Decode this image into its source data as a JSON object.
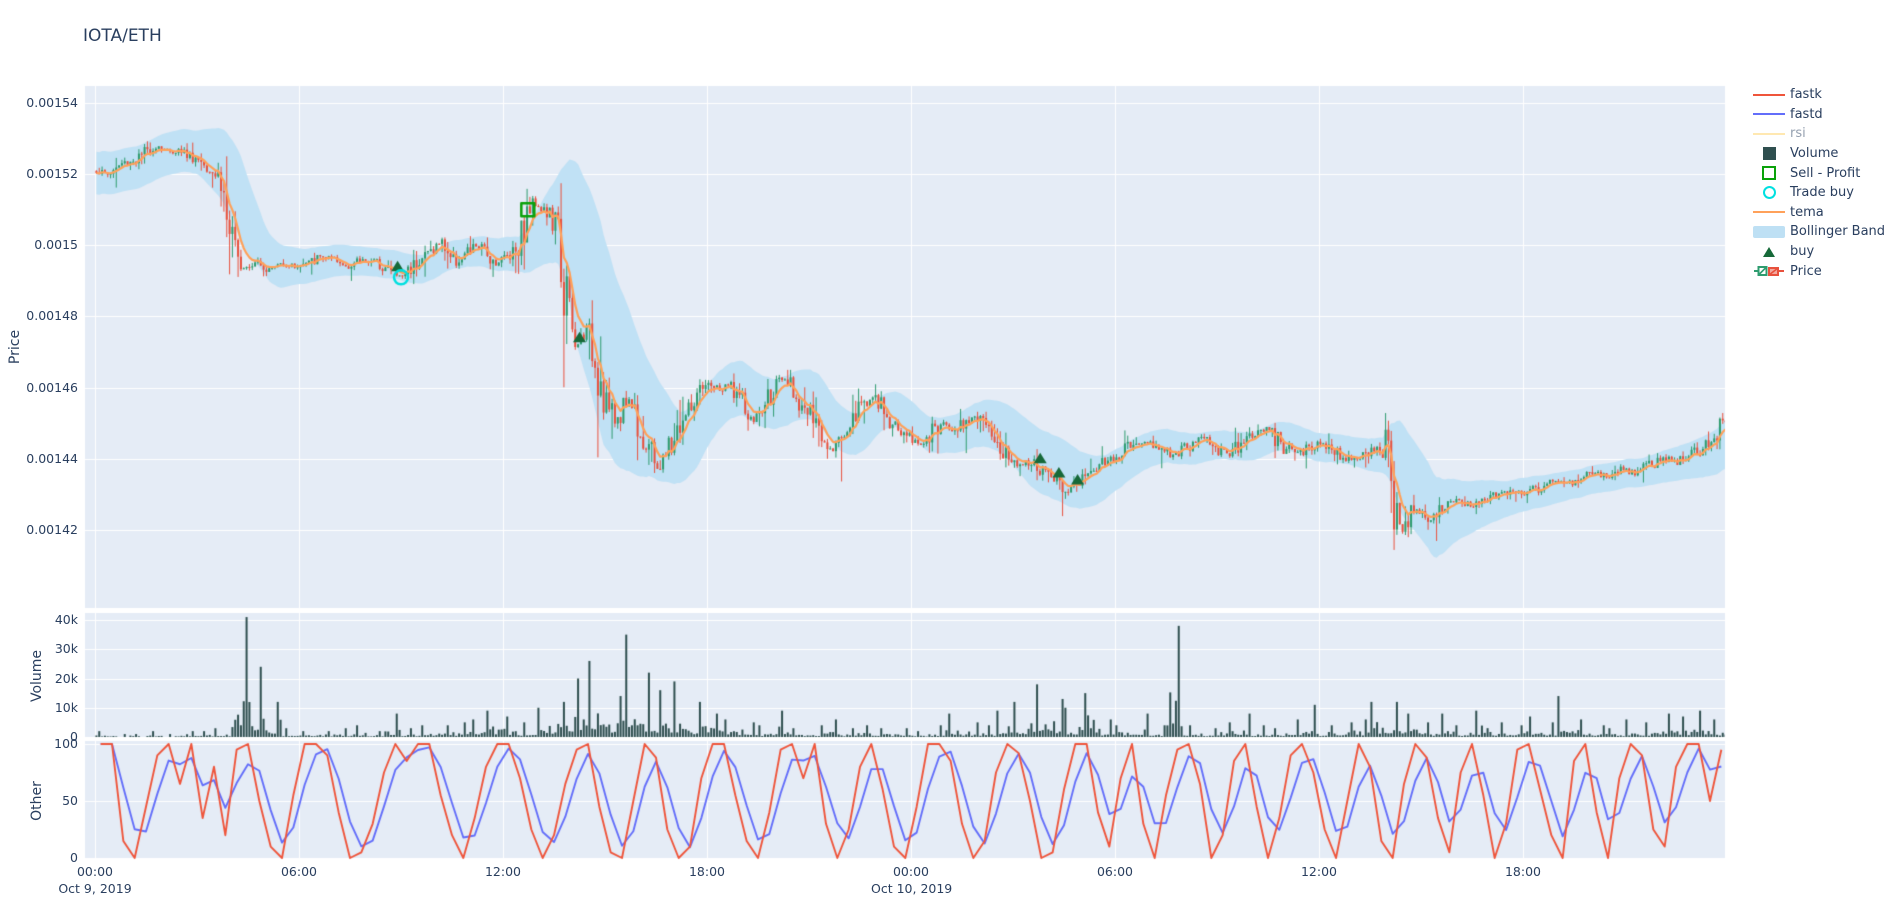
{
  "title": "IOTA/ETH",
  "axes": {
    "price": {
      "title": "Price"
    },
    "volume": {
      "title": "Volume"
    },
    "other": {
      "title": "Other"
    }
  },
  "y_axis_price": {
    "ticks": [
      "0.00154",
      "0.00152",
      "0.0015",
      "0.00148",
      "0.00146",
      "0.00144",
      "0.00142"
    ],
    "tick_values_micro": [
      1540,
      1520,
      1500,
      1480,
      1460,
      1440,
      1420
    ]
  },
  "y_axis_volume": {
    "ticks": [
      "40k",
      "30k",
      "20k",
      "10k",
      "0"
    ],
    "tick_values": [
      40,
      30,
      20,
      10,
      0
    ]
  },
  "y_axis_other": {
    "ticks": [
      "100",
      "50",
      "0"
    ],
    "tick_values": [
      100,
      50,
      0
    ]
  },
  "x_axis": {
    "tick_labels": [
      "00:00",
      "06:00",
      "12:00",
      "18:00",
      "00:00",
      "06:00",
      "12:00",
      "18:00"
    ],
    "tick_hours": [
      0,
      6,
      12,
      18,
      24,
      30,
      36,
      42
    ],
    "date_labels": [
      {
        "label": "Oct 9, 2019",
        "hour": 0
      },
      {
        "label": "Oct 10, 2019",
        "hour": 24
      }
    ]
  },
  "legend": {
    "items": [
      {
        "label": "fastk",
        "type": "line",
        "color": "#EF553B",
        "faded": false
      },
      {
        "label": "fastd",
        "type": "line",
        "color": "#636EFA",
        "faded": false
      },
      {
        "label": "rsi",
        "type": "line",
        "color": "#FECB52",
        "faded": true
      },
      {
        "label": "Volume",
        "type": "square",
        "color": "#2F4F4F",
        "faded": false
      },
      {
        "label": "Sell - Profit",
        "type": "square-open",
        "color": "#0AA20A",
        "faded": false
      },
      {
        "label": "Trade buy",
        "type": "circle-open",
        "color": "#00E0E0",
        "faded": false
      },
      {
        "label": "tema",
        "type": "line",
        "color": "#FFA15A",
        "faded": false
      },
      {
        "label": "Bollinger Band",
        "type": "band",
        "color": "#BEE0F4",
        "faded": false
      },
      {
        "label": "buy",
        "type": "triangle",
        "color": "#166939",
        "faded": false
      },
      {
        "label": "Price",
        "type": "candle",
        "color": "#2E9C6F",
        "color2": "#E8513D",
        "faded": false
      }
    ]
  },
  "colors": {
    "up": "#2E9C6F",
    "down": "#E8513D",
    "volume_bar": "#2F4F4F",
    "tema": "#FFA15A",
    "band": "#BEE0F4",
    "fastk": "#EF553B",
    "fastd": "#636EFA",
    "plot_bg": "#E5ECF6",
    "grid": "#FFFFFF",
    "text": "#2A3F5F",
    "buy_marker": "#166939",
    "sell_marker": "#0AA20A",
    "trade_buy_marker": "#00E0E0"
  },
  "chart_data": {
    "type": "candlestick",
    "title": "IOTA/ETH",
    "pair": "IOTA/ETH",
    "x_start": "Oct 9, 2019 00:00",
    "x_end": "Oct 11, 2019 00:00",
    "x_range_hours": [
      -0.3,
      48
    ],
    "candle_interval_min": 5,
    "hidden_traces": [
      "rsi"
    ],
    "render_seed": 1337,
    "price_panel": {
      "ylabel": "Price",
      "ylim": [
        0.001398,
        0.0015448
      ],
      "grid": true,
      "close_waypoints_hour_microprice": [
        [
          0,
          1521
        ],
        [
          0.4,
          1520
        ],
        [
          0.8,
          1523
        ],
        [
          1.2,
          1524
        ],
        [
          1.6,
          1527
        ],
        [
          1.9,
          1528
        ],
        [
          2.2,
          1526
        ],
        [
          2.5,
          1527
        ],
        [
          2.8,
          1525
        ],
        [
          3.1,
          1524
        ],
        [
          3.4,
          1522
        ],
        [
          3.7,
          1519
        ],
        [
          3.9,
          1507
        ],
        [
          4.1,
          1496
        ],
        [
          4.4,
          1494
        ],
        [
          4.8,
          1496
        ],
        [
          5.1,
          1493
        ],
        [
          5.5,
          1495
        ],
        [
          5.9,
          1494
        ],
        [
          6.3,
          1495
        ],
        [
          6.7,
          1497
        ],
        [
          7.1,
          1495
        ],
        [
          7.5,
          1494
        ],
        [
          7.9,
          1496
        ],
        [
          8.3,
          1495
        ],
        [
          8.7,
          1493
        ],
        [
          9.0,
          1491
        ],
        [
          9.4,
          1495
        ],
        [
          9.8,
          1498
        ],
        [
          10.2,
          1501
        ],
        [
          10.6,
          1495
        ],
        [
          10.9,
          1497
        ],
        [
          11.2,
          1500
        ],
        [
          11.5,
          1498
        ],
        [
          11.8,
          1495
        ],
        [
          12.1,
          1497
        ],
        [
          12.4,
          1500
        ],
        [
          12.6,
          1505
        ],
        [
          12.8,
          1511
        ],
        [
          13.0,
          1512
        ],
        [
          13.2,
          1510
        ],
        [
          13.5,
          1506
        ],
        [
          13.7,
          1497
        ],
        [
          13.9,
          1482
        ],
        [
          14.1,
          1470
        ],
        [
          14.3,
          1474
        ],
        [
          14.5,
          1476
        ],
        [
          14.7,
          1469
        ],
        [
          14.9,
          1461
        ],
        [
          15.1,
          1455
        ],
        [
          15.3,
          1450
        ],
        [
          15.5,
          1454
        ],
        [
          15.7,
          1457
        ],
        [
          15.9,
          1453
        ],
        [
          16.1,
          1447
        ],
        [
          16.4,
          1440
        ],
        [
          16.6,
          1437
        ],
        [
          16.9,
          1443
        ],
        [
          17.2,
          1449
        ],
        [
          17.5,
          1454
        ],
        [
          17.8,
          1458
        ],
        [
          18.1,
          1461
        ],
        [
          18.4,
          1459
        ],
        [
          18.7,
          1461
        ],
        [
          19.0,
          1456
        ],
        [
          19.3,
          1450
        ],
        [
          19.6,
          1453
        ],
        [
          19.9,
          1459
        ],
        [
          20.2,
          1462
        ],
        [
          20.5,
          1460
        ],
        [
          20.8,
          1455
        ],
        [
          21.1,
          1451
        ],
        [
          21.4,
          1446
        ],
        [
          21.7,
          1443
        ],
        [
          22.0,
          1447
        ],
        [
          22.3,
          1452
        ],
        [
          22.6,
          1456
        ],
        [
          22.9,
          1457
        ],
        [
          23.2,
          1453
        ],
        [
          23.5,
          1449
        ],
        [
          23.8,
          1447
        ],
        [
          24.1,
          1445
        ],
        [
          24.4,
          1444
        ],
        [
          24.7,
          1448
        ],
        [
          25.0,
          1450
        ],
        [
          25.3,
          1448
        ],
        [
          25.6,
          1451
        ],
        [
          25.9,
          1452
        ],
        [
          26.2,
          1448
        ],
        [
          26.5,
          1445
        ],
        [
          26.8,
          1441
        ],
        [
          27.1,
          1438
        ],
        [
          27.4,
          1440
        ],
        [
          27.7,
          1437
        ],
        [
          28.0,
          1436
        ],
        [
          28.3,
          1434
        ],
        [
          28.6,
          1431
        ],
        [
          28.9,
          1433
        ],
        [
          29.2,
          1436
        ],
        [
          29.5,
          1438
        ],
        [
          29.8,
          1440
        ],
        [
          30.1,
          1441
        ],
        [
          30.5,
          1444
        ],
        [
          30.9,
          1445
        ],
        [
          31.3,
          1443
        ],
        [
          31.7,
          1441
        ],
        [
          32.1,
          1443
        ],
        [
          32.5,
          1446
        ],
        [
          32.9,
          1444
        ],
        [
          33.3,
          1441
        ],
        [
          33.7,
          1444
        ],
        [
          34.1,
          1447
        ],
        [
          34.5,
          1448
        ],
        [
          34.9,
          1444
        ],
        [
          35.3,
          1441
        ],
        [
          35.7,
          1443
        ],
        [
          36.1,
          1445
        ],
        [
          36.5,
          1442
        ],
        [
          36.9,
          1440
        ],
        [
          37.3,
          1441
        ],
        [
          37.7,
          1443
        ],
        [
          38.0,
          1440
        ],
        [
          38.2,
          1424
        ],
        [
          38.4,
          1419
        ],
        [
          38.6,
          1423
        ],
        [
          38.9,
          1426
        ],
        [
          39.2,
          1423
        ],
        [
          39.5,
          1425
        ],
        [
          39.8,
          1427
        ],
        [
          40.1,
          1428
        ],
        [
          40.5,
          1427
        ],
        [
          40.9,
          1429
        ],
        [
          41.3,
          1430
        ],
        [
          41.7,
          1431
        ],
        [
          42.1,
          1430
        ],
        [
          42.5,
          1432
        ],
        [
          42.9,
          1434
        ],
        [
          43.3,
          1433
        ],
        [
          43.7,
          1434
        ],
        [
          44.1,
          1436
        ],
        [
          44.5,
          1435
        ],
        [
          44.9,
          1437
        ],
        [
          45.3,
          1436
        ],
        [
          45.7,
          1438
        ],
        [
          46.1,
          1440
        ],
        [
          46.5,
          1439
        ],
        [
          46.9,
          1441
        ],
        [
          47.3,
          1443
        ],
        [
          47.6,
          1447
        ],
        [
          47.9,
          1452
        ]
      ],
      "bollinger_halfwidth_hour_microprice": [
        [
          0,
          6
        ],
        [
          3,
          6
        ],
        [
          3.9,
          11
        ],
        [
          4.3,
          12
        ],
        [
          5,
          7
        ],
        [
          6,
          5
        ],
        [
          8,
          4
        ],
        [
          11,
          4
        ],
        [
          12.5,
          5
        ],
        [
          13,
          8
        ],
        [
          13.6,
          12
        ],
        [
          14.2,
          26
        ],
        [
          14.9,
          30
        ],
        [
          15.6,
          24
        ],
        [
          16.3,
          16
        ],
        [
          17.2,
          10
        ],
        [
          18.5,
          8
        ],
        [
          20,
          7
        ],
        [
          21.5,
          7
        ],
        [
          23,
          5
        ],
        [
          25,
          5
        ],
        [
          26.5,
          7
        ],
        [
          27.5,
          9
        ],
        [
          28.6,
          9
        ],
        [
          29.8,
          6
        ],
        [
          31,
          5
        ],
        [
          33,
          4
        ],
        [
          35,
          4
        ],
        [
          37,
          4
        ],
        [
          37.9,
          5
        ],
        [
          38.4,
          13
        ],
        [
          39.3,
          12
        ],
        [
          40.2,
          8
        ],
        [
          41.5,
          5
        ],
        [
          43.5,
          4
        ],
        [
          45.5,
          4
        ],
        [
          46.8,
          5
        ],
        [
          47.5,
          6
        ],
        [
          48,
          7
        ]
      ],
      "tema": "EMA smoothing of close, plotted as orange line",
      "markers": {
        "buy_hour_microprice": [
          [
            8.9,
            1494
          ],
          [
            14.25,
            1474
          ],
          [
            27.8,
            1440
          ],
          [
            28.35,
            1436
          ],
          [
            28.9,
            1434
          ]
        ],
        "trade_buy_hour_microprice": [
          [
            9.0,
            1491
          ]
        ],
        "sell_profit_hour_microprice": [
          [
            12.73,
            1510
          ]
        ]
      }
    },
    "volume_panel": {
      "ylabel": "Volume",
      "ylim": [
        0,
        43000
      ],
      "bin_minutes": 30,
      "values_thousands": [
        2,
        1,
        1,
        2,
        1,
        2,
        2,
        3,
        41,
        24,
        12,
        3,
        2,
        2,
        3,
        4,
        2,
        8,
        3,
        4,
        4,
        5,
        6,
        9,
        7,
        5,
        10,
        12,
        20,
        26,
        14,
        35,
        22,
        16,
        19,
        12,
        8,
        6,
        5,
        4,
        9,
        3,
        4,
        6,
        3,
        4,
        3,
        3,
        2,
        4,
        8,
        5,
        4,
        9,
        12,
        18,
        13,
        10,
        15,
        6,
        4,
        8,
        4,
        38,
        4,
        3,
        5,
        8,
        4,
        3,
        6,
        11,
        4,
        5,
        6,
        12,
        12,
        8,
        5,
        8,
        4,
        9,
        5,
        4,
        7,
        5,
        14,
        6,
        4,
        3,
        6,
        5,
        8,
        7,
        9,
        6
      ]
    },
    "oscillator_panel": {
      "ylabel": "Other",
      "ylim": [
        -2,
        103
      ],
      "clip": [
        0,
        100
      ],
      "fastk_20min": [
        100,
        100,
        15,
        0,
        45,
        90,
        100,
        65,
        100,
        35,
        80,
        20,
        95,
        100,
        50,
        10,
        0,
        55,
        100,
        100,
        90,
        40,
        0,
        5,
        30,
        75,
        100,
        85,
        100,
        100,
        55,
        20,
        0,
        35,
        80,
        100,
        100,
        70,
        25,
        0,
        20,
        65,
        95,
        100,
        45,
        5,
        0,
        50,
        100,
        88,
        25,
        0,
        10,
        70,
        100,
        100,
        55,
        15,
        0,
        40,
        95,
        100,
        70,
        100,
        30,
        0,
        25,
        80,
        100,
        60,
        10,
        0,
        45,
        100,
        100,
        85,
        30,
        0,
        15,
        75,
        100,
        92,
        50,
        0,
        5,
        60,
        100,
        100,
        40,
        10,
        70,
        100,
        30,
        0,
        55,
        95,
        100,
        65,
        0,
        20,
        85,
        100,
        45,
        0,
        35,
        90,
        100,
        75,
        25,
        0,
        50,
        100,
        80,
        15,
        0,
        65,
        100,
        88,
        35,
        5,
        75,
        100,
        55,
        0,
        30,
        95,
        100,
        60,
        20,
        0,
        85,
        100,
        40,
        0,
        70,
        100,
        90,
        25,
        10,
        80,
        100,
        100,
        50,
        95
      ],
      "fastd": "3-point weighted smoothing of fastk"
    }
  }
}
